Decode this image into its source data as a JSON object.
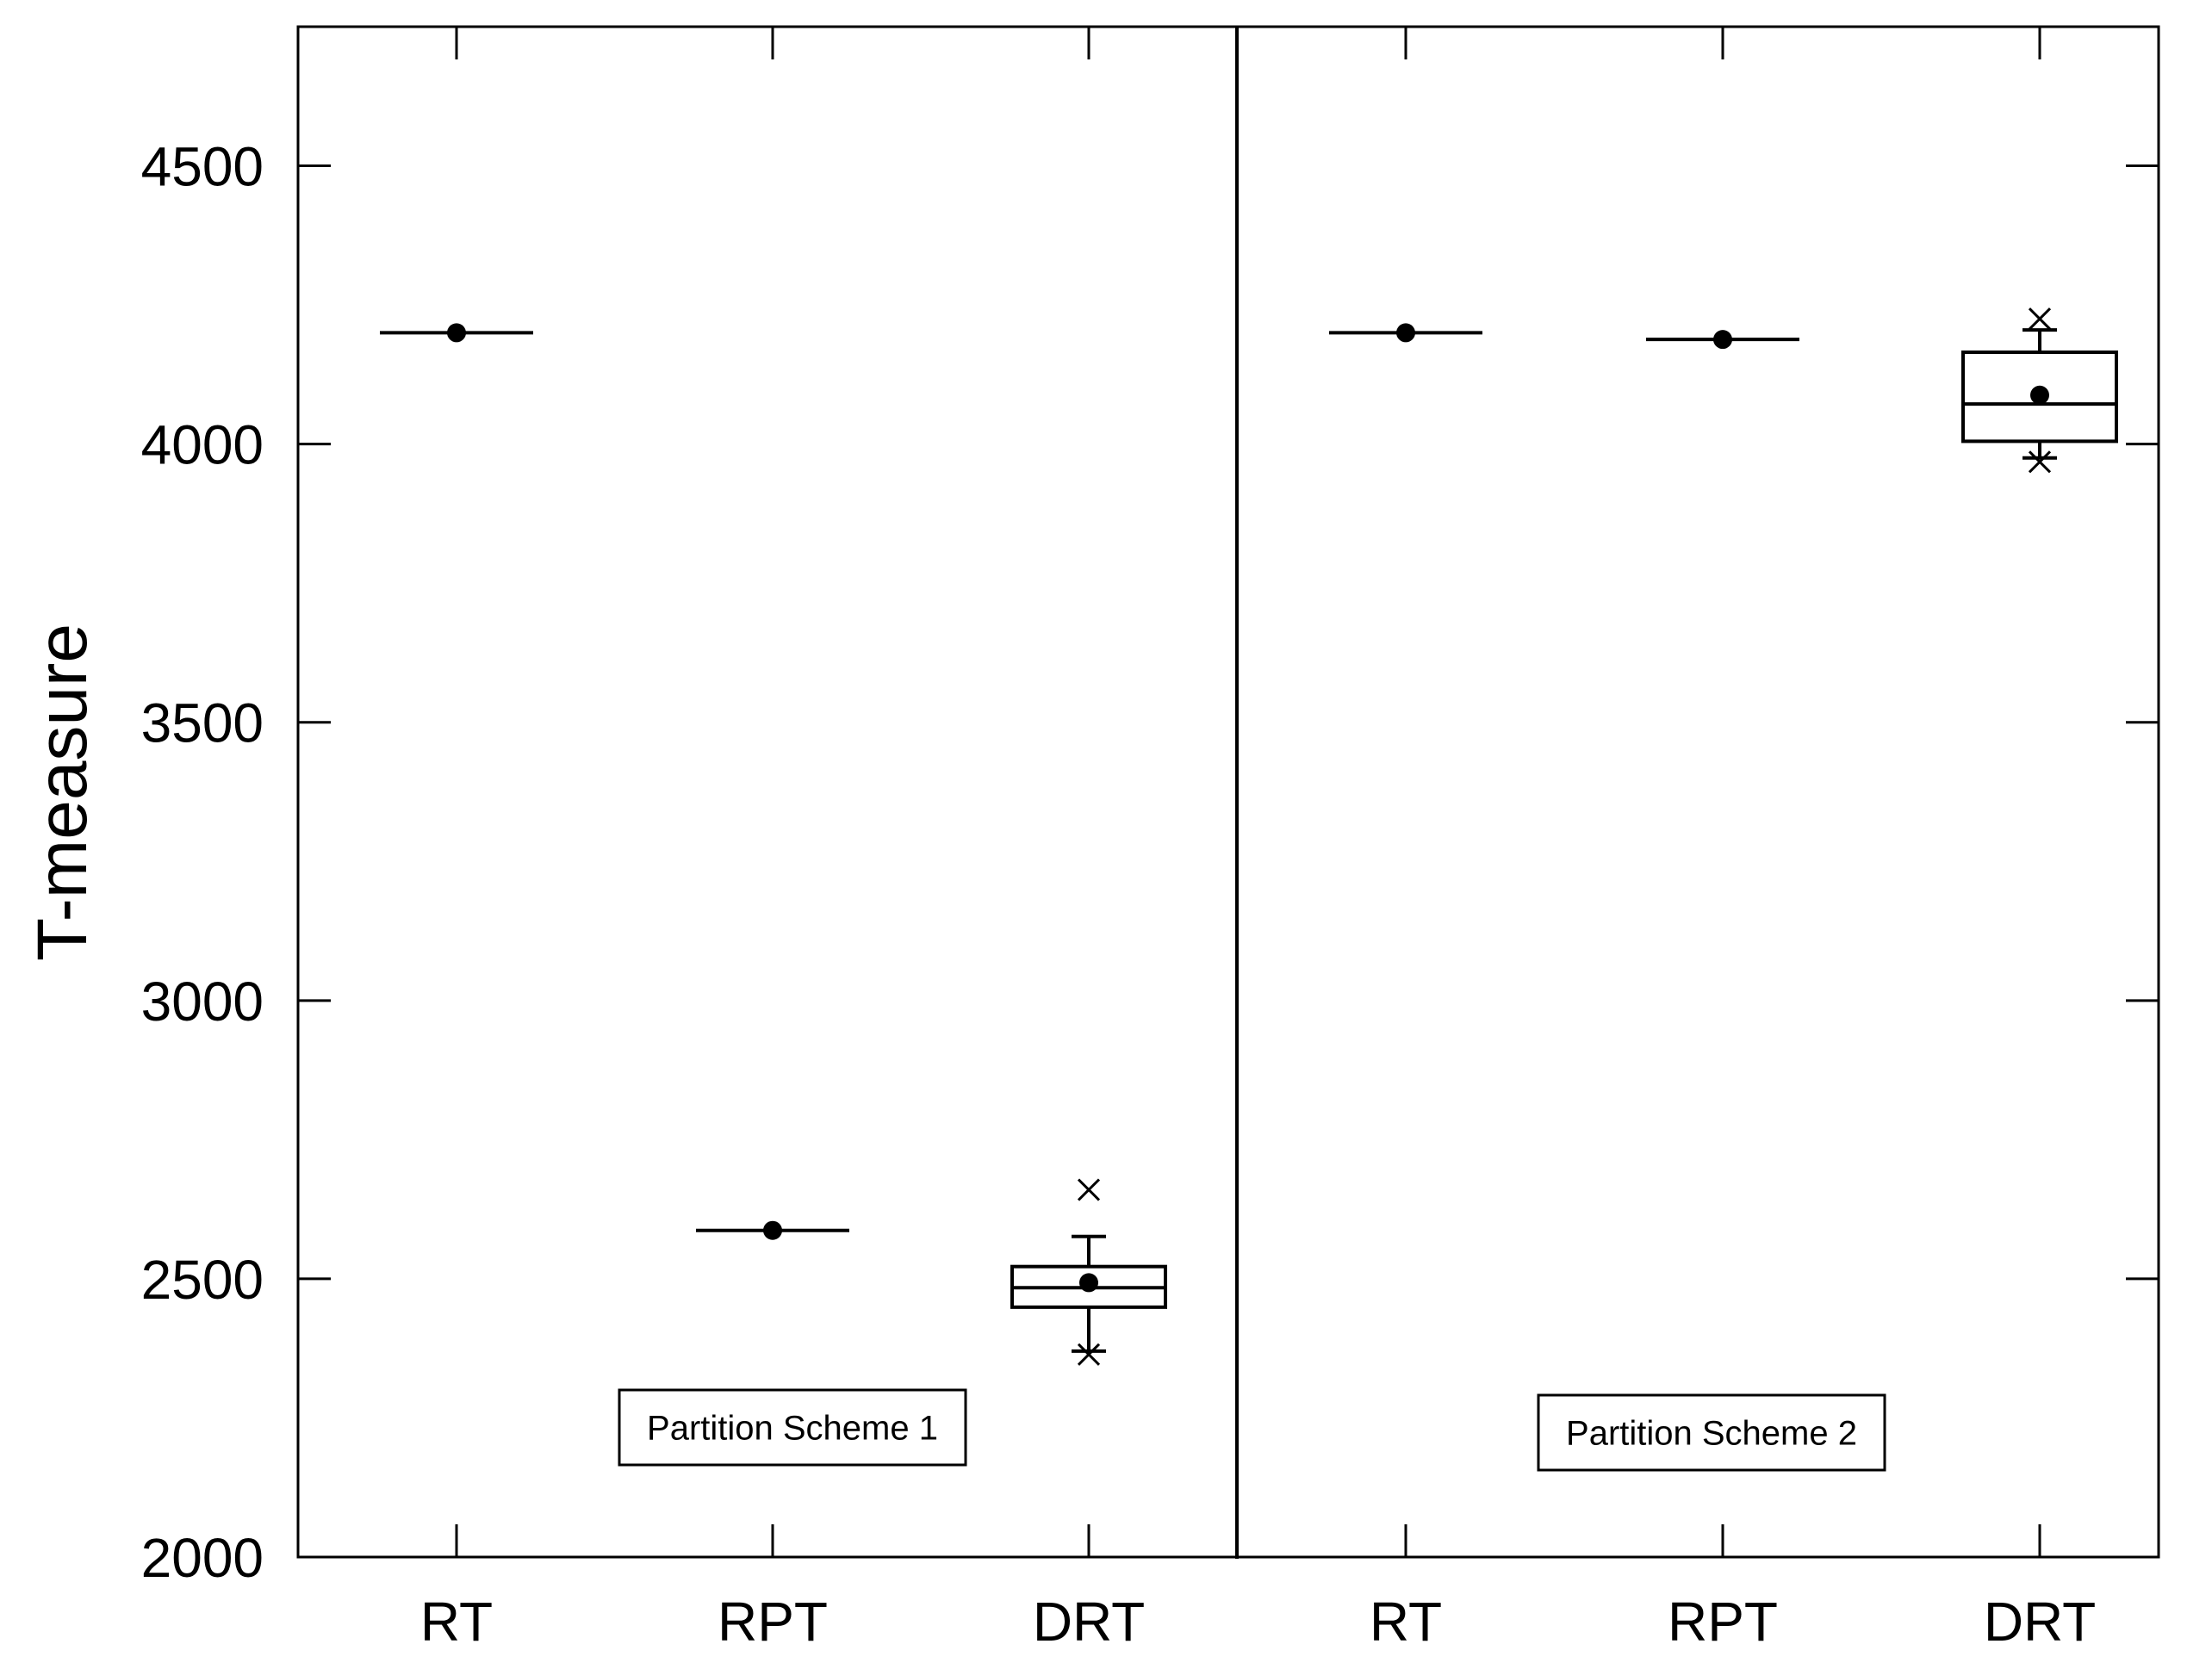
{
  "chart_data": {
    "type": "box",
    "ylabel": "T-measure",
    "ylim": [
      2000,
      4750
    ],
    "yticks": [
      2000,
      2500,
      3000,
      3500,
      4000,
      4500
    ],
    "categories": [
      "RT",
      "RPT",
      "DRT",
      "RT",
      "RPT",
      "DRT"
    ],
    "panels": [
      {
        "annotation": "Partition Scheme 1",
        "boxes": [
          {
            "category": "RT",
            "q1": 4200,
            "median": 4200,
            "q3": 4200,
            "whisker_low": 4200,
            "whisker_high": 4200,
            "mean": 4200,
            "outliers": []
          },
          {
            "category": "RPT",
            "q1": 2587,
            "median": 2587,
            "q3": 2587,
            "whisker_low": 2587,
            "whisker_high": 2587,
            "mean": 2587,
            "outliers": []
          },
          {
            "category": "DRT",
            "q1": 2449,
            "median": 2484,
            "q3": 2522,
            "whisker_low": 2370,
            "whisker_high": 2576,
            "mean": 2493,
            "outliers": [
              2660,
              2364
            ]
          }
        ]
      },
      {
        "annotation": "Partition Scheme 2",
        "boxes": [
          {
            "category": "RT",
            "q1": 4200,
            "median": 4200,
            "q3": 4200,
            "whisker_low": 4200,
            "whisker_high": 4200,
            "mean": 4200,
            "outliers": []
          },
          {
            "category": "RPT",
            "q1": 4188,
            "median": 4188,
            "q3": 4188,
            "whisker_low": 4188,
            "whisker_high": 4188,
            "mean": 4188,
            "outliers": []
          },
          {
            "category": "DRT",
            "q1": 4005,
            "median": 4072,
            "q3": 4165,
            "whisker_low": 3975,
            "whisker_high": 4205,
            "mean": 4088,
            "outliers": [
              4225,
              3968
            ]
          }
        ]
      }
    ]
  }
}
